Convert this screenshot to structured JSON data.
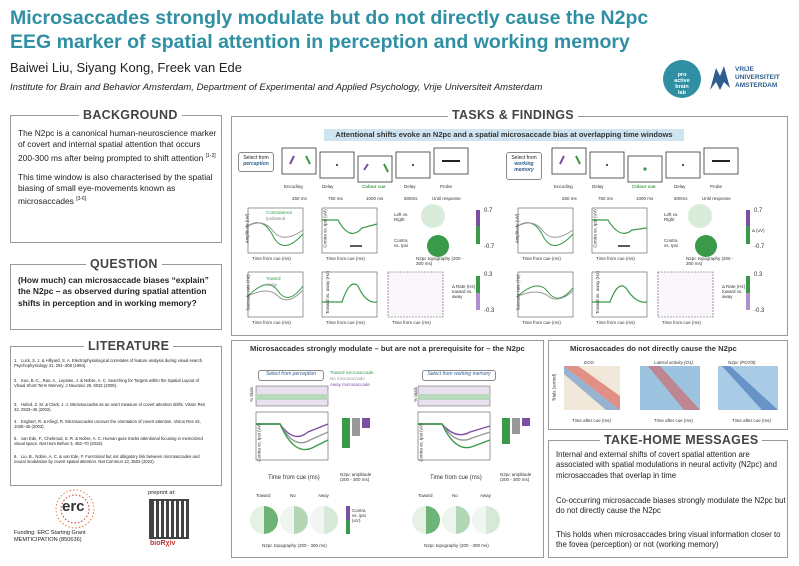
{
  "header": {
    "title": "Microsaccades strongly modulate but do not directly cause the N2pc EEG marker of spatial attention in perception and working memory",
    "authors": "Baiwei Liu, Siyang Kong, Freek van Ede",
    "affiliation": "Institute for Brain and Behavior Amsterdam, Department of Experimental and Applied Psychology, Vrije Universiteit Amsterdam",
    "logo_lab": [
      "pro",
      "active",
      "brain",
      "lab"
    ],
    "logo_vu": [
      "VRIJE",
      "UNIVERSITEIT",
      "AMSTERDAM"
    ]
  },
  "background": {
    "title": "BACKGROUND",
    "p1": "The N2pc is a canonical human-neuroscience marker of covert and internal spatial attention that occurs 200-300 ms after being prompted to shift attention",
    "p1_ref": "[1-2]",
    "p2": "This time window is also characterised by the spatial biasing of small eye-movements known as microsaccades",
    "p2_ref": "[3-6]"
  },
  "question": {
    "title": "QUESTION",
    "text": "(How much) can microsaccade biases “explain” the N2pc – as observed during spatial attention shifts in perception and in working memory?"
  },
  "literature": {
    "title": "LITERATURE",
    "refs": [
      "Luck, S. J. & Hillyard, S. A. Electrophysiological correlates of feature analysis during visual search. Psychophysiology 31, 291–308 (1994).",
      "Kuo, B.-C., Rao, A., Lepsien, J. & Nobre, A. C. Searching for Targets within the Spatial Layout of Visual Short-Term Memory. J Neurosci 29, 8032 (2009).",
      "Hafed, Z. M. & Clark, J. J. Microsaccades as an overt measure of covert attention shifts. Vision Res 42, 2533–45 (2002).",
      "Engbert, R. & Kliegl, R. Microsaccades uncover the orientation of covert attention. Vision Res 43, 1035–45 (2003).",
      "van Ede, F., Chekroud, S. R. & Nobre, A. C. Human gaze tracks attentional focusing in memorized visual space. Nat Hum Behav 3, 462–70 (2019).",
      "Liu, B., Nobre, A. C. & van Ede, F. Functional but not obligatory link between microsaccades and neural modulation by covert spatial attention. Nat Commun 13, 3503 (2022)."
    ],
    "nums": [
      "1.",
      "2.",
      "3.",
      "4.",
      "5.",
      "6."
    ]
  },
  "footer": {
    "erc": "erc",
    "funding": "Funding: ERC Starting Grant",
    "grant": "MEMTICIPATION (850636)",
    "preprint": "preprint at:",
    "biorxiv": "bioRχiv"
  },
  "tasks": {
    "title": "TASKS & FINDINGS",
    "banner": "Attentional shifts evoke an N2pc and a spatial microsaccade bias at overlapping time windows",
    "perception": {
      "select_from": "Select from",
      "select_word": "perception",
      "stages": [
        "Encoding",
        "Delay",
        "Colour cue",
        "Delay",
        "Probe"
      ],
      "times": [
        "250 ms",
        "750 ms",
        "1000 ms",
        "500ms",
        "Until response"
      ]
    },
    "memory": {
      "select_from": "Select from",
      "select_word": "working memory",
      "stages": [
        "Encoding",
        "Delay",
        "Colour cue",
        "Delay",
        "Probe"
      ],
      "times": [
        "250 ms",
        "750 ms",
        "1000 ms",
        "500ms",
        "Until response"
      ]
    },
    "plot_labels": {
      "amplitude": "Amplitude (uV)",
      "contra_ipsi": "Contra vs. ipsi (uV)",
      "saccade_rate": "Saccade rate (Hz)",
      "toward_away": "Toward vs. away (Hz)",
      "time_axis": "Time from cue (ms)",
      "contralateral": "Contralateral",
      "ipsilateral": "Ipsilateral",
      "toward": "Toward",
      "away": "Away",
      "left_right": "Left vs. Right",
      "contra_vs_ipsi": "Contra vs. Ipsi",
      "topo": "N2pc topography (200 - 300 ms)",
      "uv": "Δ (uV)",
      "rate_hz": "Δ Rate (Hz) toward vs. away",
      "scale_hi": "0.7",
      "scale_lo": "-0.7",
      "scale_hi2": "0.3",
      "scale_lo2": "-0.3"
    },
    "modulate": {
      "title": "Microsaccades strongly modulate – but are not a prerequisite for – the N2pc",
      "select_perception": "Select from perception",
      "select_memory": "Select from working memory",
      "legend": [
        "Toward microsaccade",
        "No microsaccade",
        "Away microsaccade"
      ],
      "trials": "% trials",
      "contra_ipsi": "Contra vs. ipsi (uV)",
      "time_axis": "Time from cue (ms)",
      "n2pc_amp": "N2pc amplitude (200 - 300 ms)",
      "topo_labels": [
        "Toward",
        "No",
        "Away"
      ],
      "topo_caption": "N2pc topography (200 - 300 ms)",
      "scale_label": "Contra vs. ipsi (uV)"
    },
    "not_cause": {
      "title": "Microsaccades do not directly cause the N2pc",
      "panels": [
        "EOG",
        "Lateral activity (O1)",
        "N2pc (PO7/8)"
      ],
      "ylabel": "Trials (sorted)",
      "xlabel": "Time after cue (ms)"
    }
  },
  "takehome": {
    "title": "TAKE-HOME MESSAGES",
    "msgs": [
      "Internal and external shifts of covert spatial attention are associated with spatial modulations in neural activity (N2pc) and microsaccades that overlap in time",
      "Co-occurring microsaccade biases strongly modulate the N2pc but do not directly cause the N2pc",
      "This holds when microsaccades bring visual information closer to the fovea (perception) or not (working memory)"
    ]
  },
  "colors": {
    "accent": "#2f8fa3",
    "green": "#3a9a4a",
    "purple": "#7b4ea3",
    "banner": "#cfe3f1"
  }
}
